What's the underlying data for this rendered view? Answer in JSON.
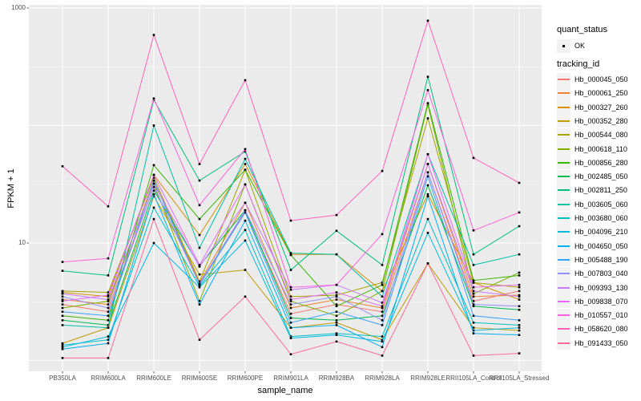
{
  "figure": {
    "background": "#FFFFFF",
    "panel_background": "#EBEBEB",
    "gridline_color": "#FFFFFF",
    "tick_color": "#333333",
    "tick_label_color": "#4D4D4D"
  },
  "axes": {
    "x": {
      "title": "sample_name"
    },
    "y": {
      "title": "FPKM + 1",
      "scale": "log10",
      "ticks": [
        {
          "label": "1000",
          "value": 1000
        },
        {
          "label": "10",
          "value": 10
        }
      ]
    }
  },
  "legend": {
    "position": "right",
    "quant_status": {
      "title": "quant_status",
      "ok_label": "OK",
      "key_color": "#000000"
    },
    "tracking_id": {
      "title": "tracking_id"
    }
  },
  "chart_data": {
    "type": "line",
    "title": "",
    "xlabel": "sample_name",
    "ylabel": "FPKM + 1",
    "y_scale": "log10",
    "ylim": [
      1,
      1000
    ],
    "grid": true,
    "legend_position": "right",
    "point_color": "#000000",
    "point_shape": "square",
    "y_gridlines_major": [
      1,
      10,
      100,
      1000
    ],
    "y_gridlines_minor": [
      3.16,
      31.6,
      316
    ],
    "x_categories": [
      "PB350LA",
      "RRIM600LA",
      "RRIM600LE",
      "RRIM600SE",
      "RRIM600PE",
      "RRIM901LA",
      "RRIM928BA",
      "RRIM928LA",
      "RRIM928LE",
      "RRII105LA_Control",
      "RRII105LA_Stressed"
    ],
    "series": [
      {
        "name": "Hb_000045_050",
        "color": "#F8766D",
        "values": [
          3.0,
          2.6,
          30,
          4.5,
          18.5,
          2.5,
          3.0,
          2.6,
          40,
          3.2,
          3.9
        ]
      },
      {
        "name": "Hb_000061_250",
        "color": "#EA8331",
        "values": [
          3.3,
          3.0,
          34,
          4.6,
          22,
          2.8,
          3.3,
          2.8,
          47,
          3.5,
          3.6
        ]
      },
      {
        "name": "Hb_000327_260",
        "color": "#D89000",
        "values": [
          3.8,
          3.5,
          38,
          11.7,
          47,
          8.0,
          8.0,
          3.9,
          26,
          4.6,
          3.3
        ]
      },
      {
        "name": "Hb_000352_280",
        "color": "#C09B00",
        "values": [
          1.4,
          1.9,
          25,
          5.4,
          5.9,
          1.9,
          2.1,
          1.5,
          6.7,
          1.9,
          1.8
        ]
      },
      {
        "name": "Hb_000544_080",
        "color": "#A3A500",
        "values": [
          3.9,
          3.8,
          36,
          4.7,
          42,
          3.5,
          3.6,
          4.6,
          115,
          4.6,
          4.2
        ]
      },
      {
        "name": "Hb_000618_110",
        "color": "#7CAE00",
        "values": [
          2.8,
          3.2,
          32,
          3.2,
          31.5,
          3.2,
          2.4,
          3.9,
          150,
          3.7,
          5.6
        ]
      },
      {
        "name": "Hb_000856_280",
        "color": "#39B600",
        "values": [
          2.4,
          2.2,
          46,
          16,
          42,
          7.9,
          2.9,
          4.4,
          155,
          4.8,
          5.3
        ]
      },
      {
        "name": "Hb_002485_050",
        "color": "#00BB4E",
        "values": [
          2.2,
          2.0,
          28,
          6.4,
          19,
          2.3,
          2.2,
          2.4,
          31,
          2.9,
          2.7
        ]
      },
      {
        "name": "Hb_002811_250",
        "color": "#00BF7D",
        "values": [
          5.8,
          5.3,
          165,
          34,
          60,
          5.9,
          12.7,
          6.5,
          260,
          8.0,
          13.9
        ]
      },
      {
        "name": "Hb_003605_060",
        "color": "#00C1A3",
        "values": [
          2.0,
          1.9,
          100,
          9.1,
          52,
          8.2,
          8.0,
          3.5,
          57,
          6.5,
          8.0
        ]
      },
      {
        "name": "Hb_003680_060",
        "color": "#00BFC4",
        "values": [
          1.35,
          1.5,
          20,
          4.3,
          12.9,
          1.6,
          1.7,
          1.6,
          16,
          2.1,
          2.0
        ]
      },
      {
        "name": "Hb_004096_210",
        "color": "#00BAE0",
        "values": [
          1.3,
          1.6,
          10,
          4.2,
          10.5,
          1.55,
          1.65,
          1.45,
          12.2,
          1.8,
          1.9
        ]
      },
      {
        "name": "Hb_004650_050",
        "color": "#00B0F6",
        "values": [
          1.25,
          1.4,
          26,
          3.0,
          15.5,
          1.9,
          2.0,
          1.3,
          25,
          1.7,
          1.65
        ]
      },
      {
        "name": "Hb_005488_190",
        "color": "#35A2FF",
        "values": [
          2.6,
          2.4,
          34,
          4.4,
          18.2,
          2.1,
          2.6,
          2.0,
          37,
          2.4,
          2.2
        ]
      },
      {
        "name": "Hb_007803_040",
        "color": "#9590FF",
        "values": [
          3.5,
          2.8,
          30,
          4.5,
          19,
          3.0,
          3.5,
          2.2,
          40,
          3.0,
          2.9
        ]
      },
      {
        "name": "Hb_009393_130",
        "color": "#C77CFF",
        "values": [
          3.7,
          3.3,
          32,
          6.3,
          22,
          4.0,
          4.4,
          3.1,
          47,
          3.9,
          3.5
        ]
      },
      {
        "name": "Hb_009838_070",
        "color": "#E76BF3",
        "values": [
          3.2,
          3.6,
          38,
          6.5,
          31.5,
          3.3,
          3.8,
          2.9,
          57,
          4.2,
          4.4
        ]
      },
      {
        "name": "Hb_010557_010",
        "color": "#FA62DB",
        "values": [
          6.9,
          7.4,
          170,
          21,
          63,
          4.2,
          4.4,
          11.9,
          200,
          12.8,
          18.2
        ]
      },
      {
        "name": "Hb_058620_080",
        "color": "#FF62BC",
        "values": [
          45,
          20.5,
          590,
          47,
          243,
          15.5,
          17.3,
          41,
          780,
          53,
          32.5
        ]
      },
      {
        "name": "Hb_091433_050",
        "color": "#FF6A98",
        "values": [
          1.05,
          1.05,
          16,
          1.5,
          3.5,
          1.13,
          1.45,
          1.1,
          6.7,
          1.1,
          1.15
        ]
      }
    ]
  }
}
